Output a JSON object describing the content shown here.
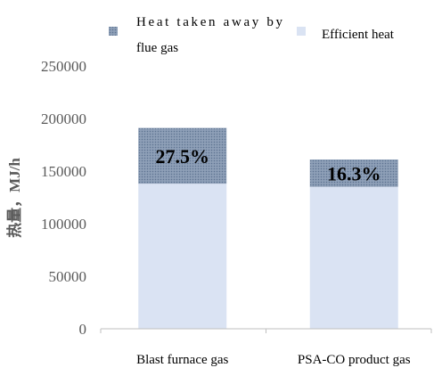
{
  "chart_data": {
    "type": "bar",
    "stacked": true,
    "categories": [
      "Blast furnace gas",
      "PSA-CO product gas"
    ],
    "series": [
      {
        "name": "Efficient heat",
        "values": [
          138000,
          135000
        ],
        "color": "#dae3f3"
      },
      {
        "name": "Heat taken away by flue gas",
        "values": [
          53000,
          26000
        ],
        "color": "#8497b0",
        "pattern": "dotted"
      }
    ],
    "data_labels": [
      "27.5%",
      "16.3%"
    ],
    "ylabel": "热量，MJ/h",
    "ylim": [
      0,
      250000
    ],
    "yticks": [
      0,
      50000,
      100000,
      150000,
      200000,
      250000
    ],
    "grid": false,
    "legend_position": "top",
    "legend_lines": {
      "flue_line1": "Heat  taken  away  by",
      "flue_line2": "flue gas",
      "efficient": "Efficient heat"
    }
  }
}
